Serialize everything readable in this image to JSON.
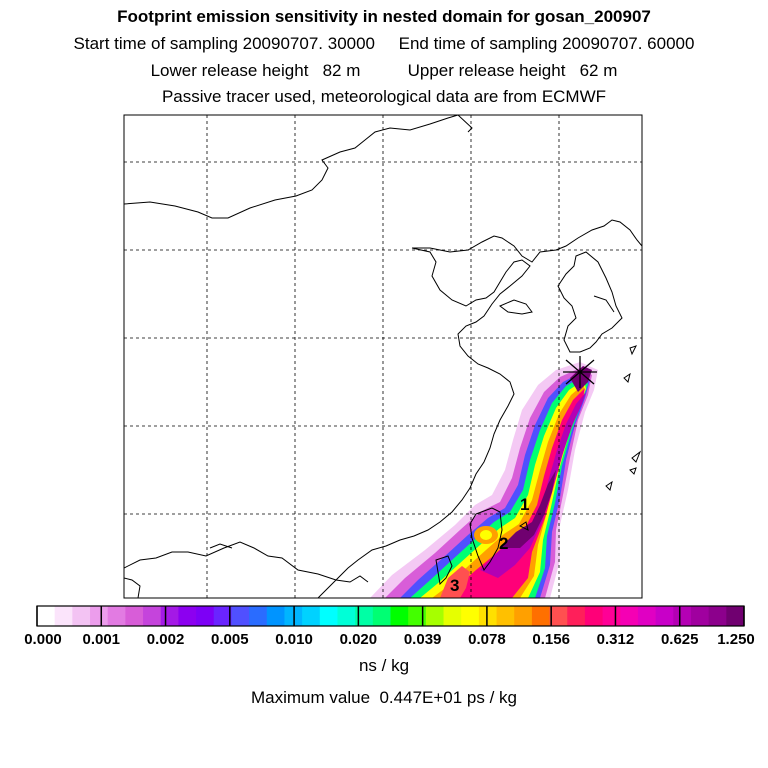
{
  "header": {
    "title": "Footprint emission sensitivity in nested domain for gosan_200907",
    "sampling": "Start time of sampling 20090707. 30000     End time of sampling 20090707. 60000",
    "release": "Lower release height   82 m          Upper release height   62 m",
    "tracer": "Passive tracer used, meteorological data are from ECMWF"
  },
  "map": {
    "labels": [
      "1",
      "2",
      "3"
    ],
    "receptor": "Gosan receptor"
  },
  "legend": {
    "ticks": [
      "0.000",
      "0.001",
      "0.002",
      "0.005",
      "0.010",
      "0.020",
      "0.039",
      "0.078",
      "0.156",
      "0.312",
      "0.625",
      "1.250"
    ],
    "colors": [
      "#ffffff",
      "#fbe4fb",
      "#f3c3f3",
      "#ec9dec",
      "#e27be2",
      "#d85dd8",
      "#c544dc",
      "#a419e6",
      "#8c00f0",
      "#7d00f6",
      "#6a24ff",
      "#5050ff",
      "#2a6cff",
      "#0094ff",
      "#00b5ff",
      "#00d2ff",
      "#00ffff",
      "#00ffd7",
      "#00ffa5",
      "#00ff73",
      "#00ff00",
      "#43ff00",
      "#a6ff00",
      "#e6ff00",
      "#ffff00",
      "#ffe000",
      "#ffc000",
      "#ffa000",
      "#ff7000",
      "#ff5050",
      "#ff1f5a",
      "#ff0078",
      "#ff0096",
      "#f500b4",
      "#e000c3",
      "#c800c8",
      "#b400b4",
      "#a0009f",
      "#8c008c",
      "#700070"
    ],
    "unit": "ns / kg",
    "max_value": "Maximum value  0.447E+01 ps / kg"
  }
}
